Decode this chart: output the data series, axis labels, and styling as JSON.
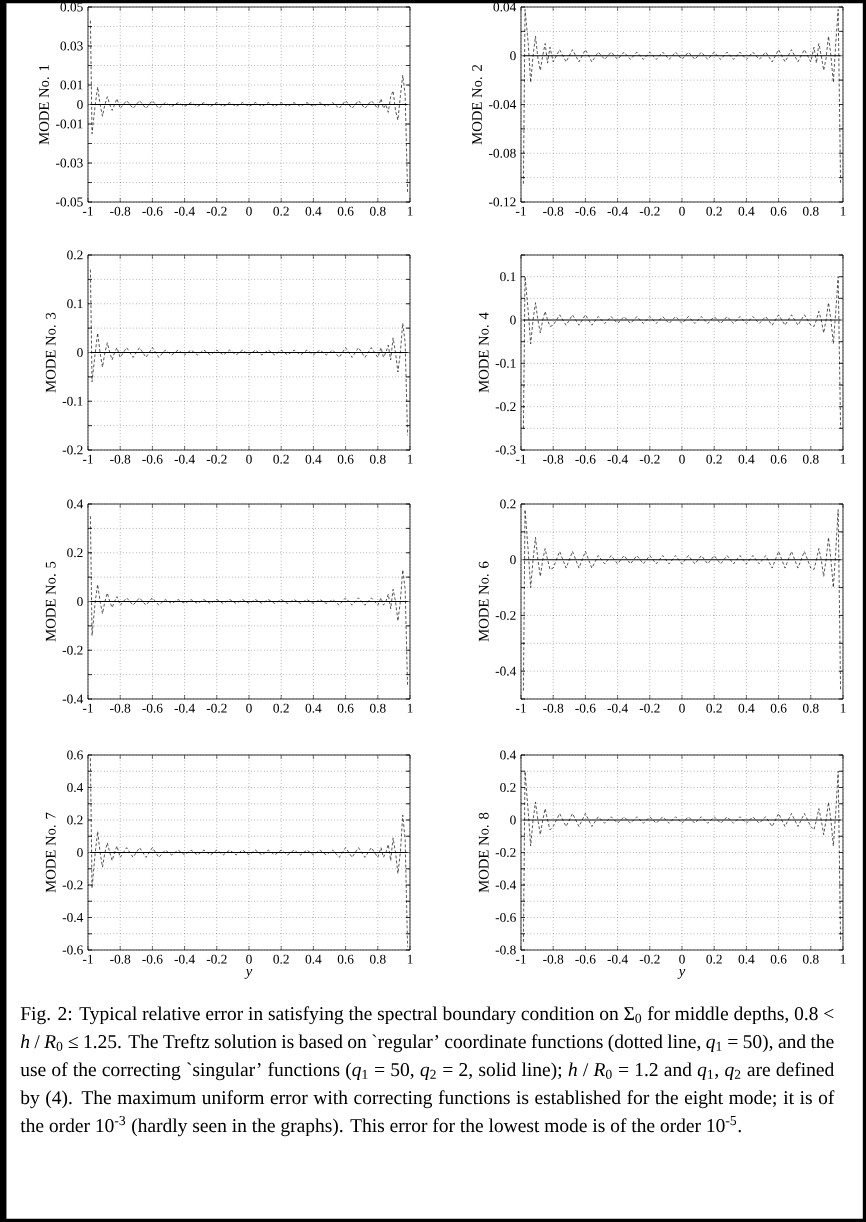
{
  "chart_data": [
    {
      "type": "line",
      "ylabel": "MODE No. 1",
      "xlim": [
        -1,
        1
      ],
      "ylim": [
        -0.05,
        0.05
      ],
      "grid": true,
      "xticks": [
        -1,
        -0.8,
        -0.6,
        -0.4,
        -0.2,
        0,
        0.2,
        0.4,
        0.6,
        0.8,
        1
      ],
      "yticks": [
        -0.05,
        {
          "value": -0.04,
          "label": null
        },
        -0.03,
        {
          "value": -0.02,
          "label": null
        },
        -0.01,
        0,
        0.01,
        {
          "value": 0.02,
          "label": null
        },
        0.03,
        {
          "value": 0.04,
          "label": null
        },
        0.05
      ],
      "x": [
        -0.985,
        -0.975,
        -0.955,
        -0.94,
        -0.925,
        -0.91,
        -0.895,
        -0.88,
        -0.865,
        -0.85,
        -0.835,
        -0.82,
        -0.8,
        -0.76,
        -0.72,
        -0.68,
        -0.64,
        -0.6,
        -0.56,
        -0.52,
        -0.48,
        -0.44,
        -0.4,
        -0.36,
        -0.32,
        -0.28,
        -0.24,
        -0.2,
        -0.16,
        -0.12,
        -0.08,
        -0.04,
        0,
        0.04,
        0.08,
        0.12,
        0.16,
        0.2,
        0.24,
        0.28,
        0.32,
        0.36,
        0.4,
        0.44,
        0.48,
        0.52,
        0.56,
        0.6,
        0.64,
        0.68,
        0.72,
        0.76,
        0.8,
        0.82,
        0.835,
        0.85,
        0.865,
        0.88,
        0.895,
        0.91,
        0.925,
        0.94,
        0.955,
        0.97,
        0.985
      ],
      "series": [
        {
          "color": "#000000",
          "line_style": "dashed",
          "values": [
            0.043,
            -0.015,
            0.0,
            0.009,
            0.0,
            -0.006,
            0.0,
            0.004,
            0.0,
            -0.003,
            0.0,
            0.003,
            -0.002,
            0.002,
            -0.002,
            0.002,
            -0.002,
            0.002,
            -0.002,
            0.001,
            -0.001,
            0.001,
            -0.001,
            0.001,
            -0.001,
            0.001,
            -0.001,
            0.001,
            -0.001,
            0.001,
            -0.001,
            0.001,
            -0.001,
            0.001,
            -0.001,
            0.001,
            -0.001,
            0.001,
            -0.001,
            0.001,
            -0.001,
            0.001,
            -0.001,
            0.001,
            -0.001,
            0.001,
            -0.002,
            0.002,
            -0.002,
            0.002,
            -0.002,
            0.002,
            -0.002,
            0.003,
            -0.002,
            0.0,
            -0.004,
            0.004,
            0.007,
            -0.003,
            -0.008,
            0.004,
            0.015,
            0.005,
            -0.045
          ]
        },
        {
          "color": "#000000",
          "line_style": "solid",
          "values": [
            0,
            0,
            0,
            0,
            0,
            0,
            0,
            0,
            0,
            0,
            0,
            0,
            0,
            0,
            0,
            0,
            0,
            0,
            0,
            0,
            0,
            0,
            0,
            0,
            0,
            0,
            0,
            0,
            0,
            0,
            0,
            0,
            0,
            0,
            0,
            0,
            0,
            0,
            0,
            0,
            0,
            0,
            0,
            0,
            0,
            0,
            0,
            0,
            0,
            0,
            0,
            0,
            0,
            0,
            0,
            0,
            0,
            0,
            0,
            0,
            0,
            0,
            0,
            0,
            0
          ]
        }
      ]
    },
    {
      "type": "line",
      "ylabel": "MODE No. 2",
      "xlim": [
        -1,
        1
      ],
      "ylim": [
        -0.12,
        0.04
      ],
      "grid": true,
      "xticks": [
        -1,
        -0.8,
        -0.6,
        -0.4,
        -0.2,
        0,
        0.2,
        0.4,
        0.6,
        0.8,
        1
      ],
      "yticks": [
        -0.12,
        {
          "value": -0.1,
          "label": null
        },
        -0.08,
        {
          "value": -0.06,
          "label": null
        },
        -0.04,
        {
          "value": -0.02,
          "label": null
        },
        0,
        {
          "value": 0.02,
          "label": null
        },
        0.04
      ],
      "x": [
        -0.985,
        -0.975,
        -0.955,
        -0.94,
        -0.925,
        -0.91,
        -0.895,
        -0.88,
        -0.865,
        -0.85,
        -0.835,
        -0.82,
        -0.8,
        -0.76,
        -0.72,
        -0.68,
        -0.64,
        -0.6,
        -0.56,
        -0.52,
        -0.48,
        -0.44,
        -0.4,
        -0.36,
        -0.32,
        -0.28,
        -0.24,
        -0.2,
        -0.16,
        -0.12,
        -0.08,
        -0.04,
        0,
        0.04,
        0.08,
        0.12,
        0.16,
        0.2,
        0.24,
        0.28,
        0.32,
        0.36,
        0.4,
        0.44,
        0.48,
        0.52,
        0.56,
        0.6,
        0.64,
        0.68,
        0.72,
        0.76,
        0.8,
        0.82,
        0.835,
        0.85,
        0.865,
        0.88,
        0.895,
        0.91,
        0.925,
        0.94,
        0.955,
        0.97,
        0.985
      ],
      "series": [
        {
          "color": "#000000",
          "line_style": "dashed",
          "values": [
            -0.105,
            0.038,
            0.01,
            -0.022,
            0.0,
            0.016,
            -0.002,
            -0.012,
            0.0,
            0.01,
            -0.006,
            0.007,
            -0.005,
            0.005,
            -0.005,
            0.005,
            -0.005,
            0.005,
            -0.005,
            0.003,
            -0.003,
            0.003,
            -0.003,
            0.003,
            -0.003,
            0.003,
            -0.003,
            0.003,
            -0.003,
            0.003,
            -0.003,
            0.003,
            -0.003,
            0.003,
            -0.003,
            0.003,
            -0.003,
            0.003,
            -0.003,
            0.003,
            -0.003,
            0.003,
            -0.003,
            0.003,
            -0.003,
            0.003,
            -0.005,
            0.005,
            -0.005,
            0.005,
            -0.005,
            0.005,
            -0.005,
            0.007,
            -0.006,
            0.01,
            0.0,
            -0.012,
            -0.002,
            0.016,
            0.0,
            -0.022,
            0.01,
            0.038,
            -0.105
          ]
        },
        {
          "color": "#000000",
          "line_style": "solid",
          "values": [
            0,
            0,
            0,
            0,
            0,
            0,
            0,
            0,
            0,
            0,
            0,
            0,
            0,
            0,
            0,
            0,
            0,
            0,
            0,
            0,
            0,
            0,
            0,
            0,
            0,
            0,
            0,
            0,
            0,
            0,
            0,
            0,
            0,
            0,
            0,
            0,
            0,
            0,
            0,
            0,
            0,
            0,
            0,
            0,
            0,
            0,
            0,
            0,
            0,
            0,
            0,
            0,
            0,
            0,
            0,
            0,
            0,
            0,
            0,
            0,
            0,
            0,
            0,
            0,
            0
          ]
        }
      ]
    },
    {
      "type": "line",
      "ylabel": "MODE No. 3",
      "xlim": [
        -1,
        1
      ],
      "ylim": [
        -0.2,
        0.2
      ],
      "grid": true,
      "xticks": [
        -1,
        -0.8,
        -0.6,
        -0.4,
        -0.2,
        0,
        0.2,
        0.4,
        0.6,
        0.8,
        1
      ],
      "yticks": [
        -0.2,
        {
          "value": -0.15,
          "label": null
        },
        -0.1,
        {
          "value": -0.05,
          "label": null
        },
        0,
        {
          "value": 0.05,
          "label": null
        },
        0.1,
        {
          "value": 0.15,
          "label": null
        },
        0.2
      ],
      "x": [
        -0.985,
        -0.975,
        -0.955,
        -0.94,
        -0.925,
        -0.91,
        -0.895,
        -0.88,
        -0.865,
        -0.85,
        -0.835,
        -0.82,
        -0.8,
        -0.76,
        -0.72,
        -0.68,
        -0.64,
        -0.6,
        -0.56,
        -0.52,
        -0.48,
        -0.44,
        -0.4,
        -0.36,
        -0.32,
        -0.28,
        -0.24,
        -0.2,
        -0.16,
        -0.12,
        -0.08,
        -0.04,
        0,
        0.04,
        0.08,
        0.12,
        0.16,
        0.2,
        0.24,
        0.28,
        0.32,
        0.36,
        0.4,
        0.44,
        0.48,
        0.52,
        0.56,
        0.6,
        0.64,
        0.68,
        0.72,
        0.76,
        0.8,
        0.82,
        0.835,
        0.85,
        0.865,
        0.88,
        0.895,
        0.91,
        0.925,
        0.94,
        0.955,
        0.97,
        0.985
      ],
      "series": [
        {
          "color": "#000000",
          "line_style": "dashed",
          "values": [
            0.17,
            -0.06,
            0.0,
            0.04,
            0.0,
            -0.03,
            0.0,
            0.02,
            0.0,
            -0.015,
            0.0,
            0.01,
            -0.01,
            0.01,
            -0.01,
            0.01,
            -0.01,
            0.01,
            -0.01,
            0.005,
            -0.005,
            0.005,
            -0.005,
            0.005,
            -0.005,
            0.005,
            -0.005,
            0.005,
            -0.005,
            0.005,
            -0.005,
            0.005,
            -0.005,
            0.005,
            -0.005,
            0.005,
            -0.005,
            0.005,
            -0.005,
            0.005,
            -0.005,
            0.005,
            -0.005,
            0.005,
            -0.005,
            0.005,
            -0.01,
            0.01,
            -0.01,
            0.01,
            -0.01,
            0.01,
            -0.01,
            0.01,
            -0.01,
            0.0,
            0.015,
            -0.015,
            0.03,
            0.0,
            -0.04,
            0.0,
            0.06,
            0.02,
            -0.17
          ]
        },
        {
          "color": "#000000",
          "line_style": "solid",
          "values": [
            0,
            0,
            0,
            0,
            0,
            0,
            0,
            0,
            0,
            0,
            0,
            0,
            0,
            0,
            0,
            0,
            0,
            0,
            0,
            0,
            0,
            0,
            0,
            0,
            0,
            0,
            0,
            0,
            0,
            0,
            0,
            0,
            0,
            0,
            0,
            0,
            0,
            0,
            0,
            0,
            0,
            0,
            0,
            0,
            0,
            0,
            0,
            0,
            0,
            0,
            0,
            0,
            0,
            0,
            0,
            0,
            0,
            0,
            0,
            0,
            0,
            0,
            0,
            0,
            0
          ]
        }
      ]
    },
    {
      "type": "line",
      "ylabel": "MODE No. 4",
      "xlim": [
        -1,
        1
      ],
      "ylim": [
        -0.3,
        0.15
      ],
      "grid": true,
      "xticks": [
        -1,
        -0.8,
        -0.6,
        -0.4,
        -0.2,
        0,
        0.2,
        0.4,
        0.6,
        0.8,
        1
      ],
      "yticks": [
        -0.3,
        {
          "value": -0.25,
          "label": null
        },
        -0.2,
        {
          "value": -0.15,
          "label": null
        },
        -0.1,
        {
          "value": -0.05,
          "label": null
        },
        0,
        {
          "value": 0.05,
          "label": null
        },
        0.1,
        {
          "value": 0.15,
          "label": null
        }
      ],
      "x": [
        -0.985,
        -0.975,
        -0.955,
        -0.94,
        -0.925,
        -0.91,
        -0.895,
        -0.88,
        -0.865,
        -0.85,
        -0.835,
        -0.82,
        -0.8,
        -0.76,
        -0.72,
        -0.68,
        -0.64,
        -0.6,
        -0.56,
        -0.52,
        -0.48,
        -0.44,
        -0.4,
        -0.36,
        -0.32,
        -0.28,
        -0.24,
        -0.2,
        -0.16,
        -0.12,
        -0.08,
        -0.04,
        0,
        0.04,
        0.08,
        0.12,
        0.16,
        0.2,
        0.24,
        0.28,
        0.32,
        0.36,
        0.4,
        0.44,
        0.48,
        0.52,
        0.56,
        0.6,
        0.64,
        0.68,
        0.72,
        0.76,
        0.8,
        0.82,
        0.835,
        0.85,
        0.865,
        0.88,
        0.895,
        0.91,
        0.925,
        0.94,
        0.955,
        0.97,
        0.985
      ],
      "series": [
        {
          "color": "#000000",
          "line_style": "dashed",
          "values": [
            -0.25,
            0.1,
            0.02,
            -0.055,
            0.0,
            0.04,
            0.0,
            -0.03,
            0.0,
            0.02,
            0.0,
            -0.015,
            -0.012,
            0.012,
            -0.012,
            0.012,
            -0.012,
            0.012,
            -0.012,
            0.008,
            -0.008,
            0.008,
            -0.008,
            0.008,
            -0.008,
            0.008,
            -0.008,
            0.008,
            -0.008,
            0.008,
            -0.008,
            0.008,
            -0.008,
            0.008,
            -0.008,
            0.008,
            -0.008,
            0.008,
            -0.008,
            0.008,
            -0.008,
            0.008,
            -0.008,
            0.008,
            -0.008,
            0.008,
            -0.012,
            0.012,
            -0.012,
            0.012,
            -0.012,
            0.012,
            -0.012,
            -0.015,
            0.0,
            0.02,
            0.0,
            -0.03,
            0.0,
            0.04,
            0.0,
            -0.055,
            0.02,
            0.1,
            -0.25
          ]
        },
        {
          "color": "#000000",
          "line_style": "solid",
          "values": [
            0,
            0,
            0,
            0,
            0,
            0,
            0,
            0,
            0,
            0,
            0,
            0,
            0,
            0,
            0,
            0,
            0,
            0,
            0,
            0,
            0,
            0,
            0,
            0,
            0,
            0,
            0,
            0,
            0,
            0,
            0,
            0,
            0,
            0,
            0,
            0,
            0,
            0,
            0,
            0,
            0,
            0,
            0,
            0,
            0,
            0,
            0,
            0,
            0,
            0,
            0,
            0,
            0,
            0,
            0,
            0,
            0,
            0,
            0,
            0,
            0,
            0,
            0,
            0,
            0
          ]
        }
      ]
    },
    {
      "type": "line",
      "ylabel": "MODE No. 5",
      "xlim": [
        -1,
        1
      ],
      "ylim": [
        -0.4,
        0.4
      ],
      "grid": true,
      "xticks": [
        -1,
        -0.8,
        -0.6,
        -0.4,
        -0.2,
        0,
        0.2,
        0.4,
        0.6,
        0.8,
        1
      ],
      "yticks": [
        -0.4,
        {
          "value": -0.3,
          "label": null
        },
        -0.2,
        {
          "value": -0.1,
          "label": null
        },
        0,
        {
          "value": 0.1,
          "label": null
        },
        0.2,
        {
          "value": 0.3,
          "label": null
        },
        0.4
      ],
      "x": [
        -0.985,
        -0.975,
        -0.955,
        -0.94,
        -0.925,
        -0.91,
        -0.895,
        -0.88,
        -0.865,
        -0.85,
        -0.835,
        -0.82,
        -0.8,
        -0.76,
        -0.72,
        -0.68,
        -0.64,
        -0.6,
        -0.56,
        -0.52,
        -0.48,
        -0.44,
        -0.4,
        -0.36,
        -0.32,
        -0.28,
        -0.24,
        -0.2,
        -0.16,
        -0.12,
        -0.08,
        -0.04,
        0,
        0.04,
        0.08,
        0.12,
        0.16,
        0.2,
        0.24,
        0.28,
        0.32,
        0.36,
        0.4,
        0.44,
        0.48,
        0.52,
        0.56,
        0.6,
        0.64,
        0.68,
        0.72,
        0.76,
        0.8,
        0.82,
        0.835,
        0.85,
        0.865,
        0.88,
        0.895,
        0.91,
        0.925,
        0.94,
        0.955,
        0.97,
        0.985
      ],
      "series": [
        {
          "color": "#000000",
          "line_style": "dashed",
          "values": [
            0.35,
            -0.14,
            0.0,
            0.07,
            0.0,
            -0.05,
            0.0,
            0.035,
            0.0,
            -0.025,
            0.0,
            0.02,
            -0.015,
            0.015,
            -0.015,
            0.015,
            -0.015,
            0.015,
            -0.015,
            0.008,
            -0.008,
            0.008,
            -0.008,
            0.008,
            -0.008,
            0.008,
            -0.008,
            0.008,
            -0.008,
            0.008,
            -0.008,
            0.008,
            -0.008,
            0.008,
            -0.008,
            0.008,
            -0.008,
            0.008,
            -0.008,
            0.008,
            -0.008,
            0.008,
            -0.008,
            0.008,
            -0.008,
            0.008,
            -0.015,
            0.015,
            -0.015,
            0.015,
            -0.015,
            0.015,
            -0.015,
            0.015,
            -0.015,
            0.0,
            0.03,
            -0.03,
            0.05,
            0.0,
            -0.08,
            0.0,
            0.13,
            0.05,
            -0.35
          ]
        },
        {
          "color": "#000000",
          "line_style": "solid",
          "values": [
            0,
            0,
            0,
            0,
            0,
            0,
            0,
            0,
            0,
            0,
            0,
            0,
            0,
            0,
            0,
            0,
            0,
            0,
            0,
            0,
            0,
            0,
            0,
            0,
            0,
            0,
            0,
            0,
            0,
            0,
            0,
            0,
            0,
            0,
            0,
            0,
            0,
            0,
            0,
            0,
            0,
            0,
            0,
            0,
            0,
            0,
            0,
            0,
            0,
            0,
            0,
            0,
            0,
            0,
            0,
            0,
            0,
            0,
            0,
            0,
            0,
            0,
            0,
            0,
            0
          ]
        }
      ]
    },
    {
      "type": "line",
      "ylabel": "MODE No. 6",
      "xlim": [
        -1,
        1
      ],
      "ylim": [
        -0.5,
        0.2
      ],
      "grid": true,
      "xticks": [
        -1,
        -0.8,
        -0.6,
        -0.4,
        -0.2,
        0,
        0.2,
        0.4,
        0.6,
        0.8,
        1
      ],
      "yticks": [
        {
          "value": -0.5,
          "label": null
        },
        -0.4,
        {
          "value": -0.3,
          "label": null
        },
        -0.2,
        {
          "value": -0.1,
          "label": null
        },
        0,
        {
          "value": 0.1,
          "label": null
        },
        0.2
      ],
      "x": [
        -0.985,
        -0.975,
        -0.955,
        -0.94,
        -0.925,
        -0.91,
        -0.895,
        -0.88,
        -0.865,
        -0.85,
        -0.835,
        -0.82,
        -0.8,
        -0.76,
        -0.72,
        -0.68,
        -0.64,
        -0.6,
        -0.56,
        -0.52,
        -0.48,
        -0.44,
        -0.4,
        -0.36,
        -0.32,
        -0.28,
        -0.24,
        -0.2,
        -0.16,
        -0.12,
        -0.08,
        -0.04,
        0,
        0.04,
        0.08,
        0.12,
        0.16,
        0.2,
        0.24,
        0.28,
        0.32,
        0.36,
        0.4,
        0.44,
        0.48,
        0.52,
        0.56,
        0.6,
        0.64,
        0.68,
        0.72,
        0.76,
        0.8,
        0.82,
        0.835,
        0.85,
        0.865,
        0.88,
        0.895,
        0.91,
        0.925,
        0.94,
        0.955,
        0.97,
        0.985
      ],
      "series": [
        {
          "color": "#000000",
          "line_style": "dashed",
          "values": [
            -0.47,
            0.18,
            0.03,
            -0.1,
            0.0,
            0.08,
            0.0,
            -0.06,
            0.0,
            0.04,
            0.0,
            -0.035,
            -0.03,
            0.03,
            -0.03,
            0.03,
            -0.03,
            0.03,
            -0.03,
            0.015,
            -0.015,
            0.015,
            -0.015,
            0.015,
            -0.015,
            0.015,
            -0.015,
            0.015,
            -0.015,
            0.015,
            -0.015,
            0.015,
            -0.015,
            0.015,
            -0.015,
            0.015,
            -0.015,
            0.015,
            -0.015,
            0.015,
            -0.015,
            0.015,
            -0.015,
            0.015,
            -0.015,
            0.015,
            -0.03,
            0.03,
            -0.03,
            0.03,
            -0.03,
            0.03,
            -0.03,
            -0.035,
            0.0,
            0.04,
            0.0,
            -0.06,
            0.0,
            0.08,
            0.0,
            -0.1,
            0.03,
            0.18,
            -0.47
          ]
        },
        {
          "color": "#000000",
          "line_style": "solid",
          "values": [
            0,
            0,
            0,
            0,
            0,
            0,
            0,
            0,
            0,
            0,
            0,
            0,
            0,
            0,
            0,
            0,
            0,
            0,
            0,
            0,
            0,
            0,
            0,
            0,
            0,
            0,
            0,
            0,
            0,
            0,
            0,
            0,
            0,
            0,
            0,
            0,
            0,
            0,
            0,
            0,
            0,
            0,
            0,
            0,
            0,
            0,
            0,
            0,
            0,
            0,
            0,
            0,
            0,
            0,
            0,
            0,
            0,
            0,
            0,
            0,
            0,
            0,
            0,
            0,
            0
          ]
        }
      ]
    },
    {
      "type": "line",
      "ylabel": "MODE No. 7",
      "xlabel": "y",
      "xlim": [
        -1,
        1
      ],
      "ylim": [
        -0.6,
        0.6
      ],
      "grid": true,
      "xticks": [
        -1,
        -0.8,
        -0.6,
        -0.4,
        -0.2,
        0,
        0.2,
        0.4,
        0.6,
        0.8,
        1
      ],
      "yticks": [
        -0.6,
        {
          "value": -0.5,
          "label": null
        },
        -0.4,
        {
          "value": -0.3,
          "label": null
        },
        -0.2,
        {
          "value": -0.1,
          "label": null
        },
        0,
        {
          "value": 0.1,
          "label": null
        },
        0.2,
        {
          "value": 0.3,
          "label": null
        },
        0.4,
        {
          "value": 0.5,
          "label": null
        },
        0.6
      ],
      "x": [
        -0.985,
        -0.975,
        -0.955,
        -0.94,
        -0.925,
        -0.91,
        -0.895,
        -0.88,
        -0.865,
        -0.85,
        -0.835,
        -0.82,
        -0.8,
        -0.76,
        -0.72,
        -0.68,
        -0.64,
        -0.6,
        -0.56,
        -0.52,
        -0.48,
        -0.44,
        -0.4,
        -0.36,
        -0.32,
        -0.28,
        -0.24,
        -0.2,
        -0.16,
        -0.12,
        -0.08,
        -0.04,
        0,
        0.04,
        0.08,
        0.12,
        0.16,
        0.2,
        0.24,
        0.28,
        0.32,
        0.36,
        0.4,
        0.44,
        0.48,
        0.52,
        0.56,
        0.6,
        0.64,
        0.68,
        0.72,
        0.76,
        0.8,
        0.82,
        0.835,
        0.85,
        0.865,
        0.88,
        0.895,
        0.91,
        0.925,
        0.94,
        0.955,
        0.97,
        0.985
      ],
      "series": [
        {
          "color": "#000000",
          "line_style": "dashed",
          "values": [
            0.58,
            -0.22,
            0.0,
            0.13,
            0.0,
            -0.09,
            0.0,
            0.06,
            0.0,
            -0.05,
            0.0,
            0.04,
            -0.03,
            0.03,
            -0.03,
            0.03,
            -0.03,
            0.03,
            -0.03,
            0.015,
            -0.015,
            0.015,
            -0.015,
            0.015,
            -0.015,
            0.015,
            -0.015,
            0.015,
            -0.015,
            0.015,
            -0.015,
            0.015,
            -0.015,
            0.015,
            -0.015,
            0.015,
            -0.015,
            0.015,
            -0.015,
            0.015,
            -0.015,
            0.015,
            -0.015,
            0.015,
            -0.015,
            0.015,
            -0.03,
            0.03,
            -0.03,
            0.03,
            -0.03,
            0.03,
            -0.03,
            0.03,
            -0.03,
            0.0,
            0.05,
            -0.05,
            0.09,
            0.0,
            -0.13,
            0.0,
            0.23,
            0.08,
            -0.58
          ]
        },
        {
          "color": "#000000",
          "line_style": "solid",
          "values": [
            0,
            0,
            0,
            0,
            0,
            0,
            0,
            0,
            0,
            0,
            0,
            0,
            0,
            0,
            0,
            0,
            0,
            0,
            0,
            0,
            0,
            0,
            0,
            0,
            0,
            0,
            0,
            0,
            0,
            0,
            0,
            0,
            0,
            0,
            0,
            0,
            0,
            0,
            0,
            0,
            0,
            0,
            0,
            0,
            0,
            0,
            0,
            0,
            0,
            0,
            0,
            0,
            0,
            0,
            0,
            0,
            0,
            0,
            0,
            0,
            0,
            0,
            0,
            0,
            0
          ]
        }
      ]
    },
    {
      "type": "line",
      "ylabel": "MODE No. 8",
      "xlabel": "y",
      "xlim": [
        -1,
        1
      ],
      "ylim": [
        -0.8,
        0.4
      ],
      "grid": true,
      "xticks": [
        -1,
        -0.8,
        -0.6,
        -0.4,
        -0.2,
        0,
        0.2,
        0.4,
        0.6,
        0.8,
        1
      ],
      "yticks": [
        -0.8,
        {
          "value": -0.7,
          "label": null
        },
        -0.6,
        {
          "value": -0.5,
          "label": null
        },
        -0.4,
        {
          "value": -0.3,
          "label": null
        },
        -0.2,
        {
          "value": -0.1,
          "label": null
        },
        0,
        {
          "value": 0.1,
          "label": null
        },
        0.2,
        {
          "value": 0.3,
          "label": null
        },
        0.4
      ],
      "x": [
        -0.985,
        -0.975,
        -0.955,
        -0.94,
        -0.925,
        -0.91,
        -0.895,
        -0.88,
        -0.865,
        -0.85,
        -0.835,
        -0.82,
        -0.8,
        -0.76,
        -0.72,
        -0.68,
        -0.64,
        -0.6,
        -0.56,
        -0.52,
        -0.48,
        -0.44,
        -0.4,
        -0.36,
        -0.32,
        -0.28,
        -0.24,
        -0.2,
        -0.16,
        -0.12,
        -0.08,
        -0.04,
        0,
        0.04,
        0.08,
        0.12,
        0.16,
        0.2,
        0.24,
        0.28,
        0.32,
        0.36,
        0.4,
        0.44,
        0.48,
        0.52,
        0.56,
        0.6,
        0.64,
        0.68,
        0.72,
        0.76,
        0.8,
        0.82,
        0.835,
        0.85,
        0.865,
        0.88,
        0.895,
        0.91,
        0.925,
        0.94,
        0.955,
        0.97,
        0.985
      ],
      "series": [
        {
          "color": "#000000",
          "line_style": "dashed",
          "values": [
            -0.75,
            0.3,
            0.05,
            -0.16,
            0.0,
            0.11,
            0.0,
            -0.09,
            0.0,
            0.07,
            0.0,
            -0.06,
            -0.04,
            0.04,
            -0.04,
            0.04,
            -0.04,
            0.04,
            -0.04,
            0.02,
            -0.02,
            0.02,
            -0.02,
            0.02,
            -0.02,
            0.02,
            -0.02,
            0.02,
            -0.02,
            0.02,
            -0.02,
            0.02,
            -0.02,
            0.02,
            -0.02,
            0.02,
            -0.02,
            0.02,
            -0.02,
            0.02,
            -0.02,
            0.02,
            -0.02,
            0.02,
            -0.02,
            0.02,
            -0.04,
            0.04,
            -0.04,
            0.04,
            -0.04,
            0.04,
            -0.04,
            -0.06,
            0.0,
            0.07,
            0.0,
            -0.09,
            0.0,
            0.11,
            0.0,
            -0.16,
            0.05,
            0.3,
            -0.75
          ]
        },
        {
          "color": "#000000",
          "line_style": "solid",
          "values": [
            0,
            0,
            0,
            0,
            0,
            0,
            0,
            0,
            0,
            0,
            0,
            0,
            0,
            0,
            0,
            0,
            0,
            0,
            0,
            0,
            0,
            0,
            0,
            0,
            0,
            0,
            0,
            0,
            0,
            0,
            0,
            0,
            0,
            0,
            0,
            0,
            0,
            0,
            0,
            0,
            0,
            0,
            0,
            0,
            0,
            0,
            0,
            0,
            0,
            0,
            0,
            0,
            0,
            0,
            0,
            0,
            0,
            0,
            0,
            0,
            0,
            0,
            0,
            0,
            0
          ]
        }
      ],
      "annotations": [
        "Fig. 2: Typical relative error in satisfying the spectral boundary condition on Σ$_{0}$ for middle depths, 0.8 < *h* / *R*$_{0}$ ≤ 1.25. The Treftz solution is based on `regular’ coordinate functions (dotted line, *q*$_{1}$ = 50), and the use of the correcting `singular’ functions (*q*$_{1}$ = 50, *q*$_{2}$ = 2, solid line); *h* / *R*$_{0}$ = 1.2 and *q*$_{1}$, *q*$_{2}$ are defined by (4). The maximum uniform error with correcting functions is established for the eight mode; it is of the order 10$^{-3}$ (hardly seen in the graphs). This error for the lowest mode is of the order 10$^{-5}$."
      ]
    }
  ]
}
